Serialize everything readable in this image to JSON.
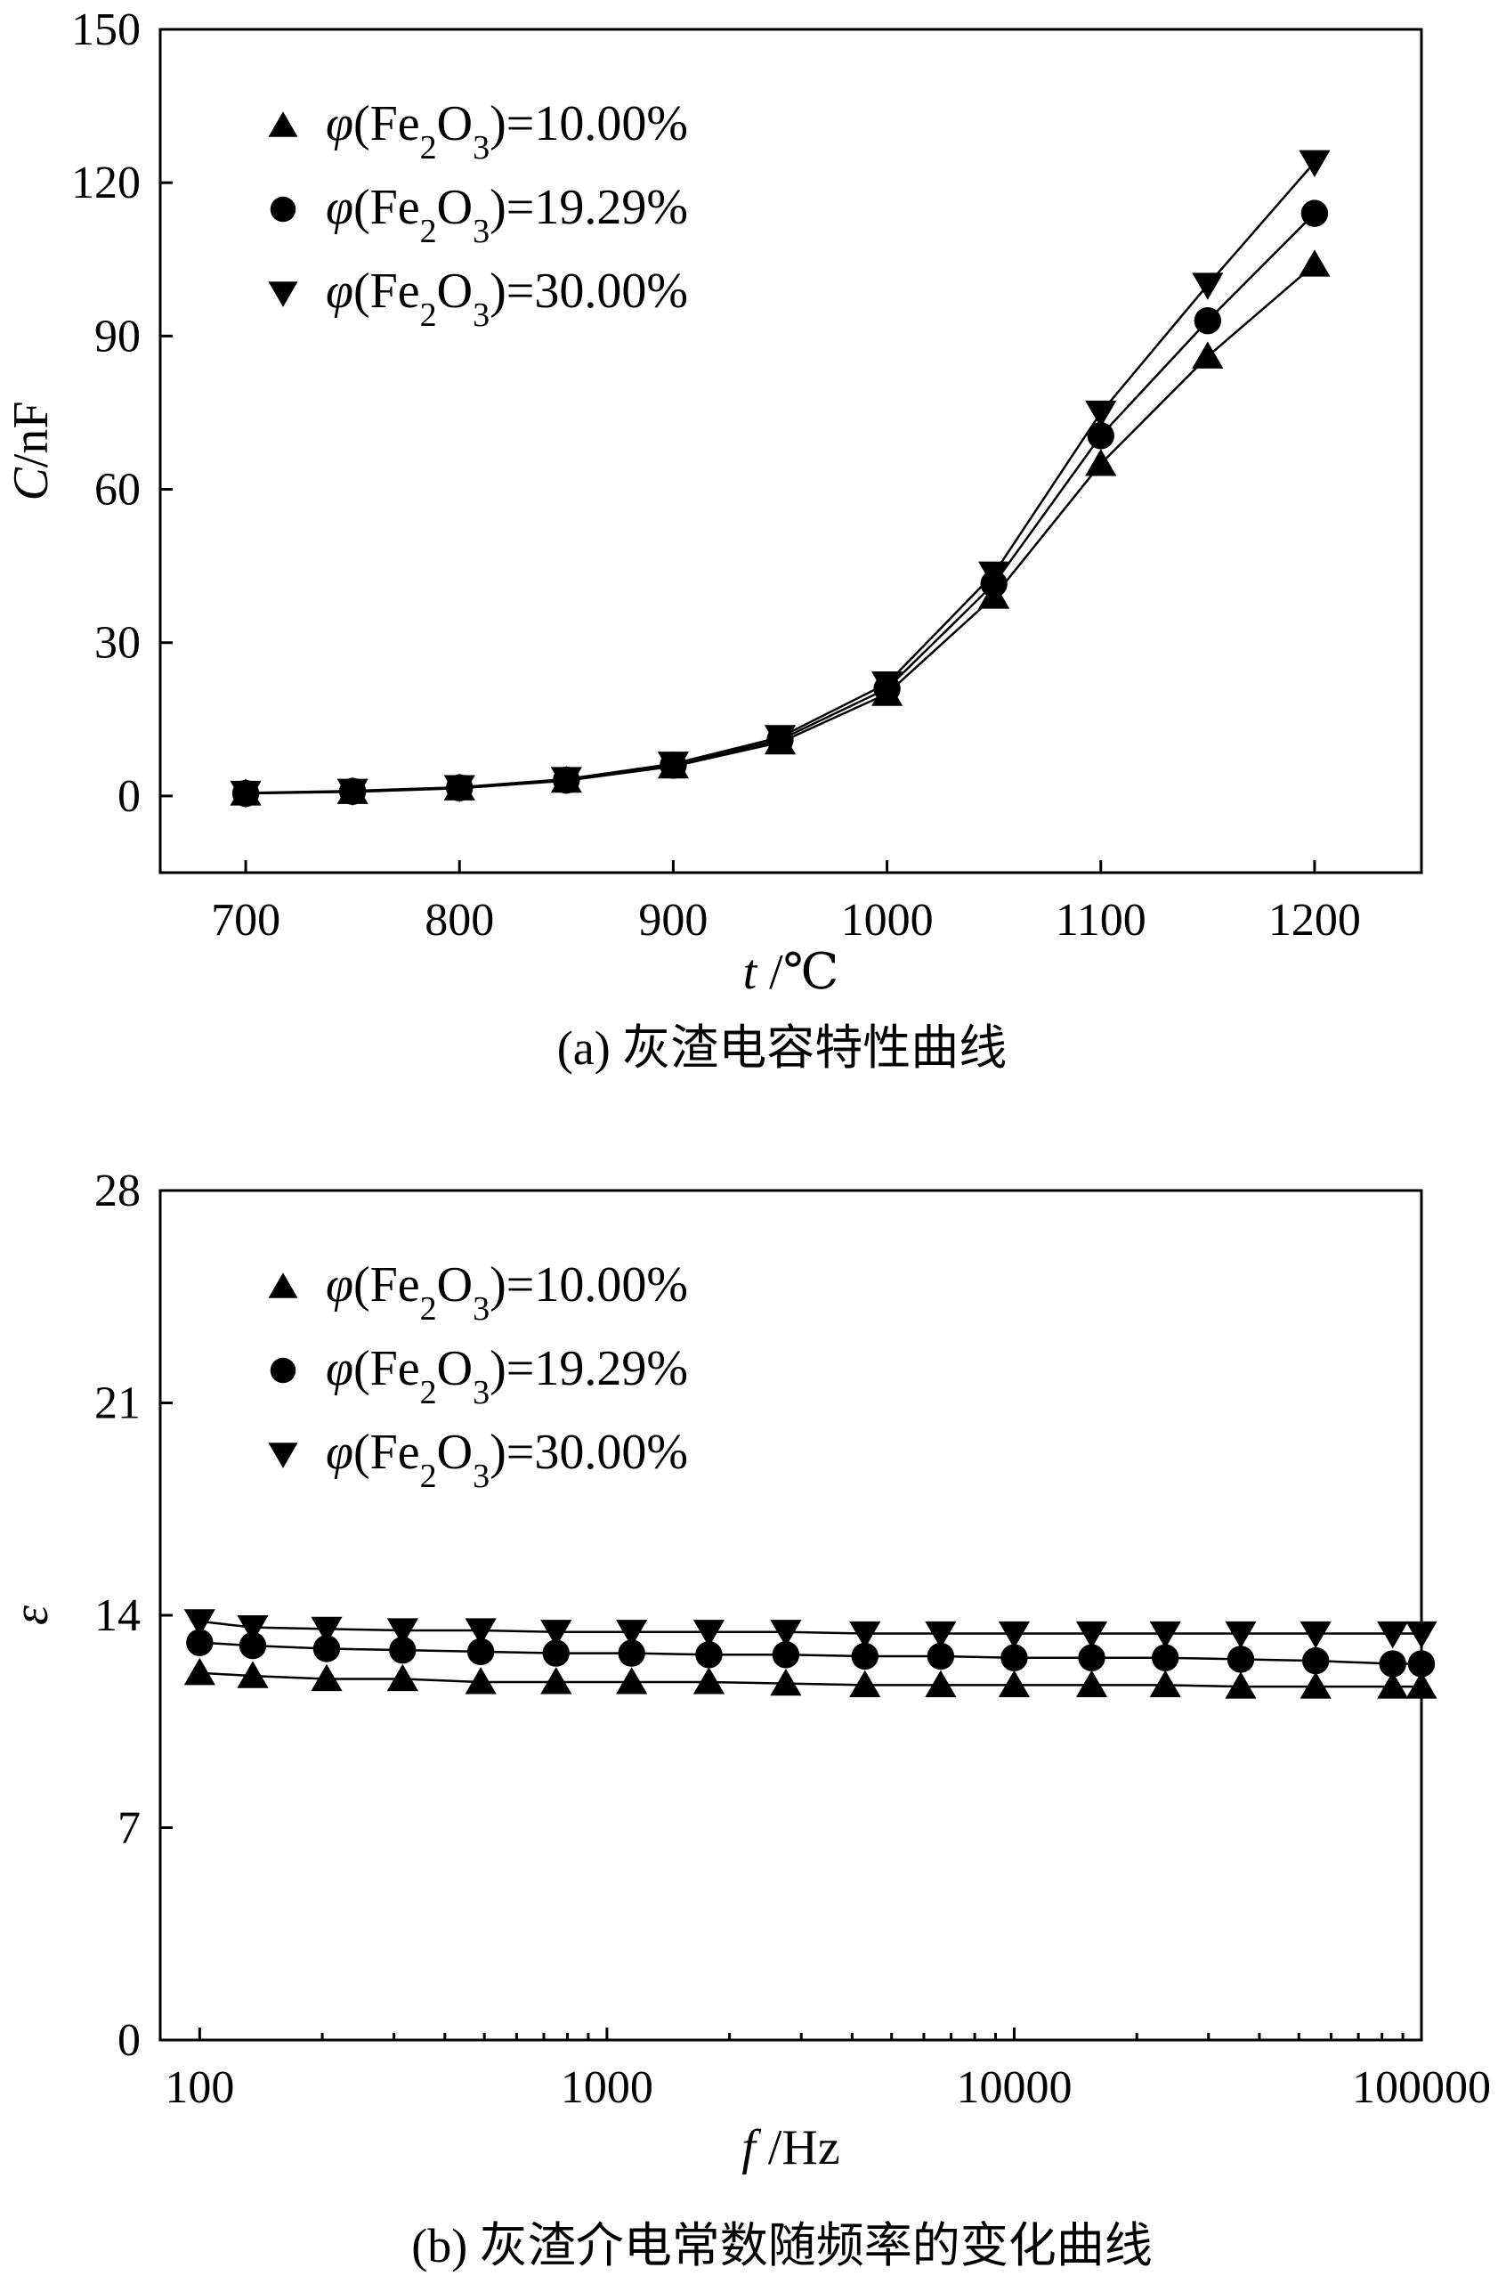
{
  "chart_data": [
    {
      "type": "line",
      "caption": "(a) 灰渣电容特性曲线",
      "xlabel": {
        "italic": "t",
        "rest": " /℃"
      },
      "ylabel": {
        "italic": "C",
        "rest": "/nF"
      },
      "x": [
        700,
        750,
        800,
        850,
        900,
        950,
        1000,
        1050,
        1100,
        1150,
        1200
      ],
      "xlim": [
        660,
        1250
      ],
      "ylim": [
        -15,
        150
      ],
      "xticks": [
        700,
        800,
        900,
        1000,
        1100,
        1200
      ],
      "yticks": [
        0,
        30,
        60,
        90,
        120,
        150
      ],
      "x_log": false,
      "series": [
        {
          "name": "φ(Fe2O3)=10.00%",
          "marker": "triangle-up",
          "values": [
            0.5,
            0.8,
            1.5,
            3.0,
            5.8,
            10.5,
            20.0,
            39.0,
            65.0,
            86.0,
            104.0
          ]
        },
        {
          "name": "φ(Fe2O3)=19.29%",
          "marker": "circle",
          "values": [
            0.5,
            0.9,
            1.6,
            3.1,
            6.0,
            11.0,
            21.0,
            41.5,
            70.5,
            93.0,
            114.0
          ]
        },
        {
          "name": "φ(Fe2O3)=30.00%",
          "marker": "triangle-down",
          "values": [
            0.6,
            1.0,
            1.7,
            3.3,
            6.3,
            11.5,
            22.0,
            43.5,
            75.0,
            100.0,
            124.0
          ]
        }
      ],
      "legend": {
        "placement": "top-left",
        "items": [
          {
            "marker": "triangle-up",
            "prefix": "φ",
            "open": "(Fe",
            "sub1": "2",
            "mid": "O",
            "sub2": "3",
            "close": ")=10.00%"
          },
          {
            "marker": "circle",
            "prefix": "φ",
            "open": "(Fe",
            "sub1": "2",
            "mid": "O",
            "sub2": "3",
            "close": ")=19.29%"
          },
          {
            "marker": "triangle-down",
            "prefix": "φ",
            "open": "(Fe",
            "sub1": "2",
            "mid": "O",
            "sub2": "3",
            "close": ")=30.00%"
          }
        ]
      }
    },
    {
      "type": "line",
      "caption": "(b) 灰渣介电常数随频率的变化曲线",
      "xlabel": {
        "italic": "f",
        "rest": " /Hz"
      },
      "ylabel": {
        "italic": "ε",
        "rest": ""
      },
      "x": [
        100,
        135,
        205,
        315,
        490,
        750,
        1150,
        1780,
        2750,
        4300,
        6600,
        10000,
        15500,
        23500,
        36000,
        55000,
        85000,
        100000
      ],
      "xlim": [
        80,
        100000
      ],
      "ylim": [
        0,
        28
      ],
      "xticks": [
        100,
        1000,
        10000,
        100000
      ],
      "yticks": [
        0,
        7,
        14,
        21,
        28
      ],
      "x_log": true,
      "series": [
        {
          "name": "φ(Fe2O3)=10.00%",
          "marker": "triangle-up",
          "values": [
            12.1,
            12.0,
            11.9,
            11.9,
            11.8,
            11.8,
            11.8,
            11.8,
            11.75,
            11.7,
            11.7,
            11.7,
            11.7,
            11.7,
            11.65,
            11.65,
            11.65,
            11.65
          ]
        },
        {
          "name": "φ(Fe2O3)=19.29%",
          "marker": "circle",
          "values": [
            13.1,
            13.0,
            12.9,
            12.85,
            12.8,
            12.75,
            12.75,
            12.7,
            12.7,
            12.65,
            12.65,
            12.6,
            12.6,
            12.6,
            12.55,
            12.5,
            12.4,
            12.4
          ]
        },
        {
          "name": "φ(Fe2O3)=30.00%",
          "marker": "triangle-down",
          "values": [
            13.8,
            13.6,
            13.55,
            13.5,
            13.5,
            13.45,
            13.45,
            13.45,
            13.45,
            13.4,
            13.4,
            13.4,
            13.4,
            13.4,
            13.4,
            13.4,
            13.4,
            13.4
          ]
        }
      ],
      "legend": {
        "placement": "top-left",
        "items": [
          {
            "marker": "triangle-up",
            "prefix": "φ",
            "open": "(Fe",
            "sub1": "2",
            "mid": "O",
            "sub2": "3",
            "close": ")=10.00%"
          },
          {
            "marker": "circle",
            "prefix": "φ",
            "open": "(Fe",
            "sub1": "2",
            "mid": "O",
            "sub2": "3",
            "close": ")=19.29%"
          },
          {
            "marker": "triangle-down",
            "prefix": "φ",
            "open": "(Fe",
            "sub1": "2",
            "mid": "O",
            "sub2": "3",
            "close": ")=30.00%"
          }
        ]
      }
    }
  ]
}
